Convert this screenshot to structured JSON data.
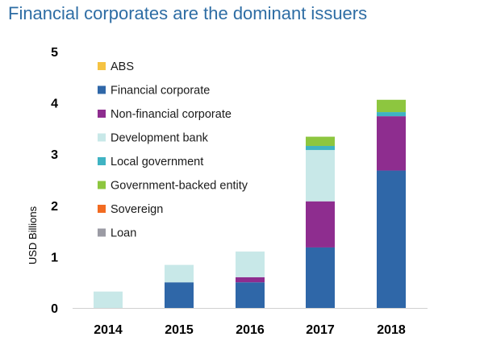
{
  "chart_title": "Financial corporates are the dominant issuers",
  "chart_data": {
    "type": "bar",
    "stacked": true,
    "title": "Financial corporates are the dominant issuers",
    "xlabel": "",
    "ylabel": "USD Billions",
    "ylim": [
      0,
      5
    ],
    "yticks": [
      0,
      1,
      2,
      3,
      4,
      5
    ],
    "categories": [
      "2014",
      "2015",
      "2016",
      "2017",
      "2018"
    ],
    "grid": false,
    "legend_position": "top-left",
    "series": [
      {
        "name": "ABS",
        "color": "#f5c342",
        "values": [
          0,
          0,
          0,
          0,
          0
        ]
      },
      {
        "name": "Financial corporate",
        "color": "#2f67a8",
        "values": [
          0,
          0.5,
          0.5,
          1.18,
          2.68
        ]
      },
      {
        "name": "Non-financial corporate",
        "color": "#8e2d8f",
        "values": [
          0,
          0,
          0.1,
          0.9,
          1.06
        ]
      },
      {
        "name": "Development bank",
        "color": "#c8e8e8",
        "values": [
          0.32,
          0.34,
          0.5,
          1.0,
          0
        ]
      },
      {
        "name": "Local government",
        "color": "#3fb3c3",
        "values": [
          0,
          0,
          0,
          0.08,
          0.08
        ]
      },
      {
        "name": "Government-backed entity",
        "color": "#8dc63f",
        "values": [
          0,
          0,
          0,
          0.18,
          0.24
        ]
      },
      {
        "name": "Sovereign",
        "color": "#f26b21",
        "values": [
          0,
          0,
          0,
          0,
          0
        ]
      },
      {
        "name": "Loan",
        "color": "#9b9ba4",
        "values": [
          0,
          0,
          0,
          0,
          0
        ]
      }
    ]
  }
}
